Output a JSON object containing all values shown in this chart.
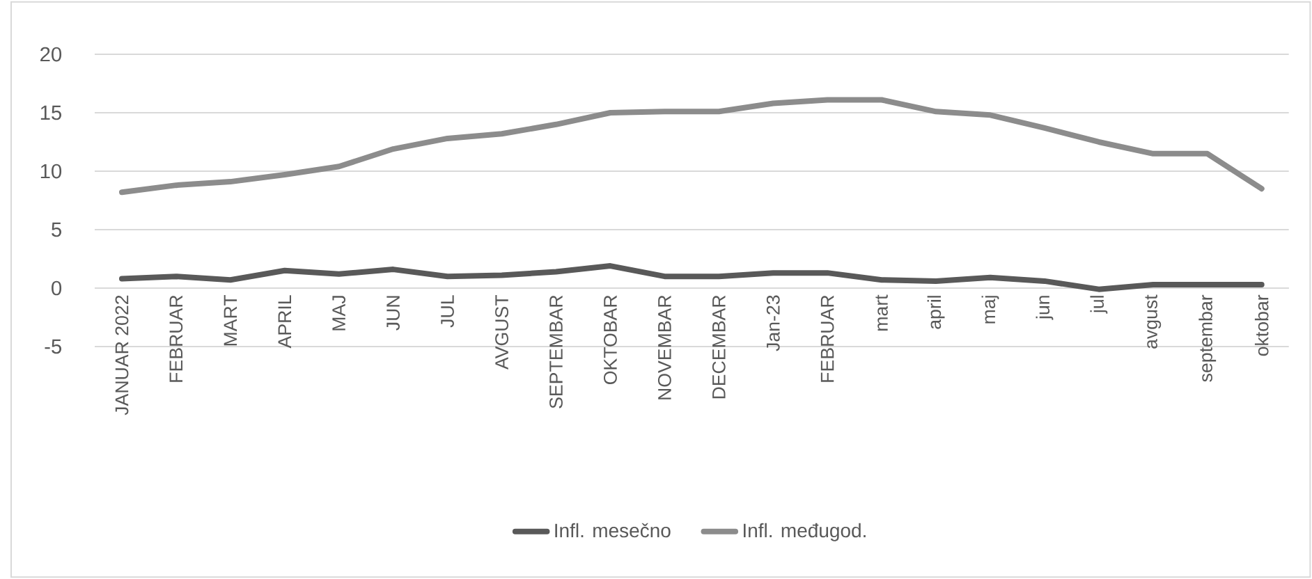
{
  "chart_data": {
    "type": "line",
    "categories": [
      "JANUAR 2022",
      "FEBRUAR",
      "MART",
      "APRIL",
      "MAJ",
      "JUN",
      "JUL",
      "AVGUST",
      "SEPTEMBAR",
      "OKTOBAR",
      "NOVEMBAR",
      "DECEMBAR",
      "Jan-23",
      "FEBRUAR",
      "mart",
      "april",
      "maj",
      "jun",
      "jul",
      "avgust",
      "septembar",
      "oktobar"
    ],
    "series": [
      {
        "name": "Infl. mesečno",
        "color": "#595959",
        "values": [
          0.8,
          1.0,
          0.7,
          1.5,
          1.2,
          1.6,
          1.0,
          1.1,
          1.4,
          1.9,
          1.0,
          1.0,
          1.3,
          1.3,
          0.7,
          0.6,
          0.9,
          0.6,
          -0.1,
          0.3,
          0.3,
          0.3
        ]
      },
      {
        "name": "Infl. međugod.",
        "color": "#8c8c8c",
        "values": [
          8.2,
          8.8,
          9.1,
          9.7,
          10.4,
          11.9,
          12.8,
          13.2,
          14.0,
          15.0,
          15.1,
          15.1,
          15.8,
          16.1,
          16.1,
          15.1,
          14.8,
          13.7,
          12.5,
          11.5,
          11.5,
          8.5
        ]
      }
    ],
    "ylim": [
      -5,
      20
    ],
    "yticks": [
      -5,
      0,
      5,
      10,
      15,
      20
    ],
    "grid": "y",
    "legend": "bottom",
    "marker": "none",
    "line_style": "solid"
  }
}
